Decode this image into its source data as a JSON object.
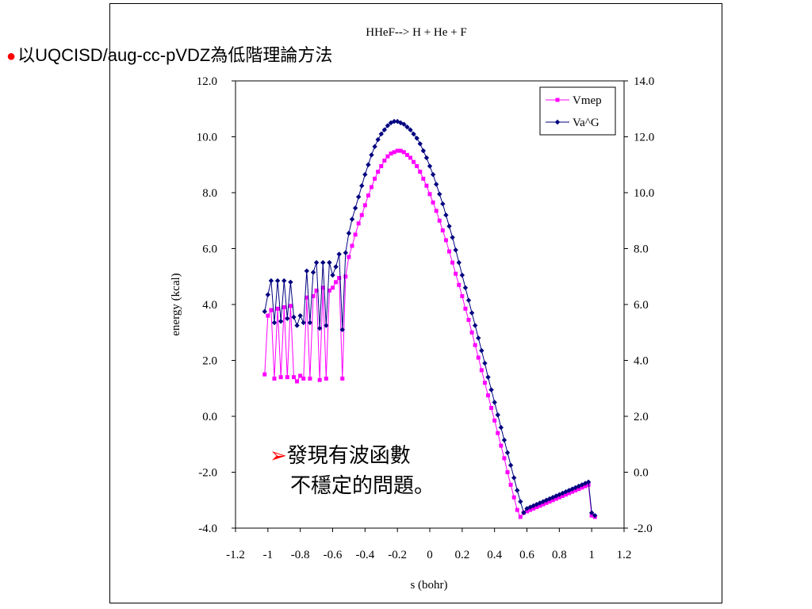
{
  "header": {
    "bullet": "●",
    "text": "以UQCISD/aug-cc-pVDZ為低階理論方法"
  },
  "callout": {
    "arrow": "➢",
    "line1": "發現有波函數",
    "line2": "不穩定的問題。"
  },
  "chart_data": {
    "type": "line",
    "title": "HHeF--> H + He + F",
    "xlabel": "s (bohr)",
    "ylabel": "energy (kcal)",
    "xlim": [
      -1.2,
      1.2
    ],
    "ylim": [
      -4.0,
      12.0
    ],
    "y2lim": [
      -2.0,
      14.0
    ],
    "x_ticks": [
      "-1.2",
      "-1",
      "-0.8",
      "-0.6",
      "-0.4",
      "-0.2",
      "0",
      "0.2",
      "0.4",
      "0.6",
      "0.8",
      "1",
      "1.2"
    ],
    "y_ticks": [
      "12.0",
      "10.0",
      "8.0",
      "6.0",
      "4.0",
      "2.0",
      "0.0",
      "-2.0",
      "-4.0"
    ],
    "y2_ticks": [
      "14.0",
      "12.0",
      "10.0",
      "8.0",
      "6.0",
      "4.0",
      "2.0",
      "0.0",
      "-2.0"
    ],
    "legend_position": "top-right",
    "grid": false,
    "colors": {
      "Vmep": "#ff00ff",
      "Va^G": "#000080"
    },
    "series": [
      {
        "name": "Vmep",
        "axis": "left",
        "marker": "square",
        "x": [
          -1.02,
          -1.0,
          -0.98,
          -0.96,
          -0.94,
          -0.92,
          -0.9,
          -0.88,
          -0.86,
          -0.84,
          -0.82,
          -0.8,
          -0.78,
          -0.76,
          -0.74,
          -0.72,
          -0.7,
          -0.68,
          -0.66,
          -0.64,
          -0.62,
          -0.6,
          -0.58,
          -0.56,
          -0.54,
          -0.52,
          -0.5,
          -0.48,
          -0.46,
          -0.44,
          -0.42,
          -0.4,
          -0.38,
          -0.36,
          -0.34,
          -0.32,
          -0.3,
          -0.28,
          -0.26,
          -0.24,
          -0.22,
          -0.2,
          -0.18,
          -0.16,
          -0.14,
          -0.12,
          -0.1,
          -0.08,
          -0.06,
          -0.04,
          -0.02,
          0.0,
          0.02,
          0.04,
          0.06,
          0.08,
          0.1,
          0.12,
          0.14,
          0.16,
          0.18,
          0.2,
          0.22,
          0.24,
          0.26,
          0.28,
          0.3,
          0.32,
          0.34,
          0.36,
          0.38,
          0.4,
          0.42,
          0.44,
          0.46,
          0.48,
          0.5,
          0.52,
          0.54,
          0.56,
          0.58,
          0.6,
          0.62,
          0.64,
          0.66,
          0.68,
          0.7,
          0.72,
          0.74,
          0.76,
          0.78,
          0.8,
          0.82,
          0.84,
          0.86,
          0.88,
          0.9,
          0.92,
          0.94,
          0.96,
          0.98,
          1.0,
          1.02
        ],
        "y": [
          1.5,
          3.6,
          3.8,
          1.35,
          3.85,
          1.4,
          3.9,
          1.4,
          3.95,
          1.4,
          1.25,
          1.45,
          1.35,
          4.25,
          1.35,
          4.3,
          4.5,
          1.3,
          4.6,
          1.35,
          4.5,
          4.6,
          4.8,
          4.95,
          1.35,
          5.0,
          5.7,
          6.1,
          6.5,
          6.9,
          7.2,
          7.55,
          7.9,
          8.2,
          8.5,
          8.75,
          8.95,
          9.15,
          9.3,
          9.4,
          9.45,
          9.5,
          9.5,
          9.45,
          9.35,
          9.25,
          9.1,
          8.95,
          8.75,
          8.5,
          8.25,
          7.95,
          7.65,
          7.35,
          7.0,
          6.65,
          6.3,
          5.9,
          5.5,
          5.1,
          4.7,
          4.3,
          3.85,
          3.45,
          3.0,
          2.55,
          2.1,
          1.65,
          1.2,
          0.75,
          0.3,
          -0.15,
          -0.6,
          -1.05,
          -1.5,
          -2.0,
          -2.45,
          -2.9,
          -3.35,
          -3.6,
          -3.45,
          -3.4,
          -3.35,
          -3.3,
          -3.25,
          -3.2,
          -3.15,
          -3.1,
          -3.05,
          -3.0,
          -2.95,
          -2.9,
          -2.85,
          -2.8,
          -2.75,
          -2.7,
          -2.65,
          -2.6,
          -2.55,
          -2.5,
          -2.45,
          -3.55,
          -3.6
        ]
      },
      {
        "name": "Va^G",
        "axis": "left",
        "marker": "diamond",
        "x": [
          -1.02,
          -1.0,
          -0.98,
          -0.96,
          -0.94,
          -0.92,
          -0.9,
          -0.88,
          -0.86,
          -0.84,
          -0.82,
          -0.8,
          -0.78,
          -0.76,
          -0.74,
          -0.72,
          -0.7,
          -0.68,
          -0.66,
          -0.64,
          -0.62,
          -0.6,
          -0.58,
          -0.56,
          -0.54,
          -0.52,
          -0.5,
          -0.48,
          -0.46,
          -0.44,
          -0.42,
          -0.4,
          -0.38,
          -0.36,
          -0.34,
          -0.32,
          -0.3,
          -0.28,
          -0.26,
          -0.24,
          -0.22,
          -0.2,
          -0.18,
          -0.16,
          -0.14,
          -0.12,
          -0.1,
          -0.08,
          -0.06,
          -0.04,
          -0.02,
          0.0,
          0.02,
          0.04,
          0.06,
          0.08,
          0.1,
          0.12,
          0.14,
          0.16,
          0.18,
          0.2,
          0.22,
          0.24,
          0.26,
          0.28,
          0.3,
          0.32,
          0.34,
          0.36,
          0.38,
          0.4,
          0.42,
          0.44,
          0.46,
          0.48,
          0.5,
          0.52,
          0.54,
          0.56,
          0.58,
          0.6,
          0.62,
          0.64,
          0.66,
          0.68,
          0.7,
          0.72,
          0.74,
          0.76,
          0.78,
          0.8,
          0.82,
          0.84,
          0.86,
          0.88,
          0.9,
          0.92,
          0.94,
          0.96,
          0.98,
          1.0,
          1.02
        ],
        "y": [
          3.75,
          4.35,
          4.85,
          3.35,
          4.85,
          3.4,
          4.85,
          3.5,
          4.8,
          3.55,
          3.25,
          3.6,
          3.35,
          5.2,
          3.35,
          5.15,
          5.5,
          3.15,
          5.5,
          3.25,
          5.5,
          5.05,
          5.35,
          5.8,
          3.1,
          5.85,
          6.55,
          7.05,
          7.45,
          7.85,
          8.25,
          8.65,
          9.0,
          9.35,
          9.65,
          9.9,
          10.1,
          10.25,
          10.4,
          10.5,
          10.55,
          10.55,
          10.5,
          10.45,
          10.35,
          10.25,
          10.1,
          9.95,
          9.75,
          9.5,
          9.25,
          8.95,
          8.65,
          8.3,
          7.95,
          7.6,
          7.2,
          6.8,
          6.4,
          5.95,
          5.5,
          5.05,
          4.6,
          4.15,
          3.7,
          3.25,
          2.8,
          2.35,
          1.9,
          1.4,
          0.95,
          0.5,
          0.05,
          -0.4,
          -0.85,
          -1.3,
          -1.75,
          -2.2,
          -2.65,
          -3.05,
          -3.45,
          -3.3,
          -3.25,
          -3.2,
          -3.15,
          -3.1,
          -3.05,
          -3.0,
          -2.95,
          -2.9,
          -2.85,
          -2.8,
          -2.75,
          -2.7,
          -2.65,
          -2.6,
          -2.55,
          -2.5,
          -2.45,
          -2.4,
          -2.35,
          -3.45,
          -3.55
        ]
      }
    ]
  }
}
